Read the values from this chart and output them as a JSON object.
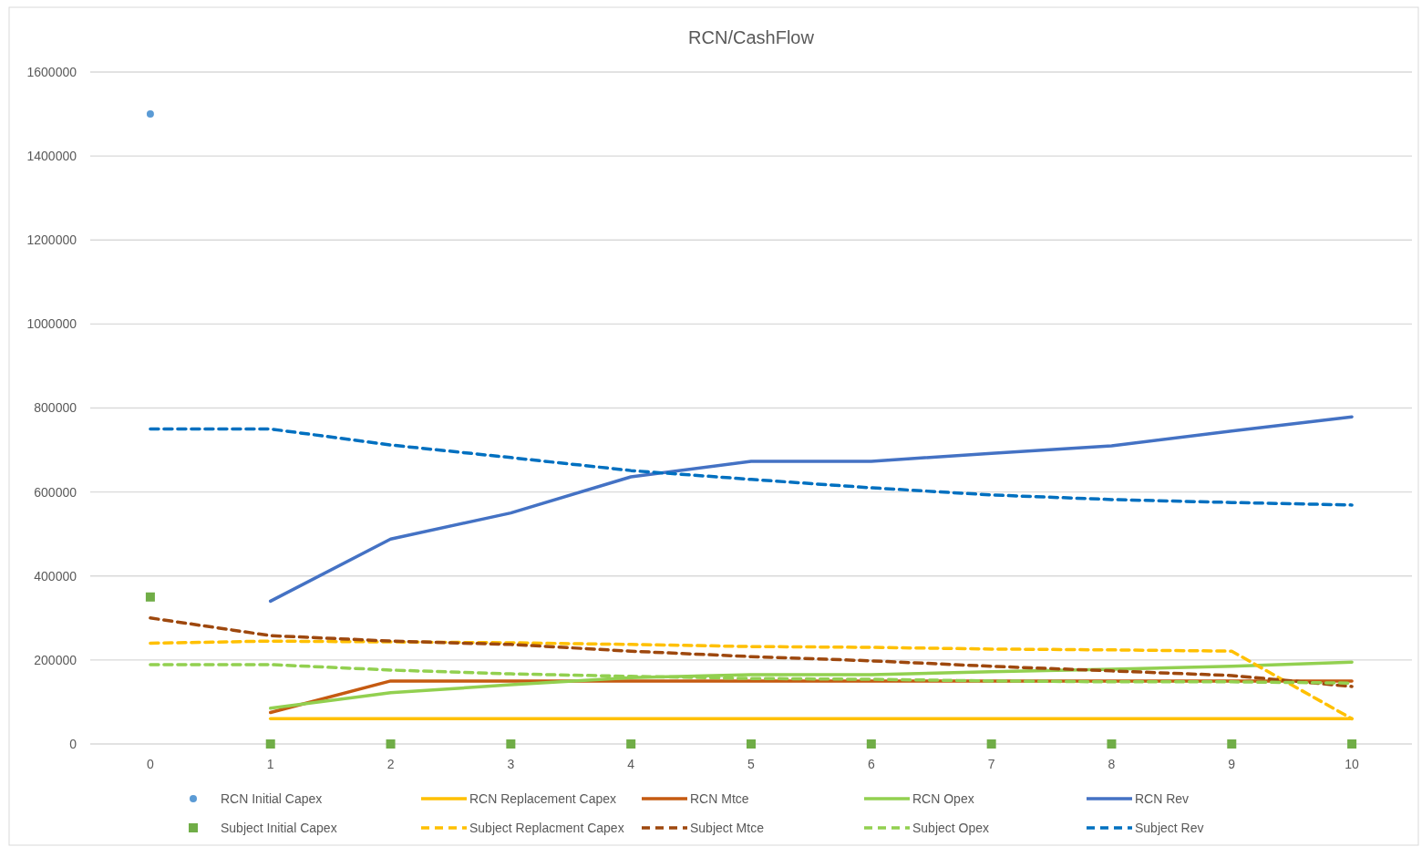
{
  "chart_data": {
    "type": "line",
    "title": "RCN/CashFlow",
    "categories": [
      "0",
      "1",
      "2",
      "3",
      "4",
      "5",
      "6",
      "7",
      "8",
      "9",
      "10"
    ],
    "series": [
      {
        "name": "RCN Initial Capex",
        "type": "scatter",
        "marker": "circle",
        "color": "#5b9bd5",
        "values": [
          1500000,
          null,
          null,
          null,
          null,
          null,
          null,
          null,
          null,
          null,
          null
        ]
      },
      {
        "name": "RCN Replacement Capex",
        "color": "#ffc000",
        "line_style": "solid",
        "values": [
          null,
          60000,
          60000,
          60000,
          60000,
          60000,
          60000,
          60000,
          60000,
          60000,
          60000
        ]
      },
      {
        "name": "RCN Mtce",
        "color": "#c55a11",
        "line_style": "solid",
        "values": [
          null,
          75000,
          150000,
          150000,
          150000,
          150000,
          150000,
          150000,
          150000,
          150000,
          150000
        ]
      },
      {
        "name": "RCN Opex",
        "color": "#92d050",
        "line_style": "solid",
        "values": [
          null,
          85000,
          122000,
          141000,
          158000,
          165000,
          165000,
          172000,
          178000,
          185000,
          195000
        ]
      },
      {
        "name": "RCN Rev",
        "color": "#4472c4",
        "line_style": "solid",
        "values": [
          null,
          340000,
          488000,
          550000,
          636000,
          673000,
          673000,
          692000,
          710000,
          745000,
          779000
        ]
      },
      {
        "name": "Subject Initial Capex",
        "type": "scatter",
        "marker": "square",
        "color": "#70ad47",
        "values": [
          350000,
          0,
          0,
          0,
          0,
          0,
          0,
          0,
          0,
          0,
          0
        ]
      },
      {
        "name": "Subject Replacment Capex",
        "color": "#ffc000",
        "line_style": "dashed",
        "values": [
          240000,
          245000,
          243000,
          241000,
          237000,
          232000,
          230000,
          226000,
          224000,
          221000,
          60000
        ]
      },
      {
        "name": "Subject Mtce",
        "color": "#9e480e",
        "line_style": "dashed",
        "values": [
          300000,
          258000,
          245000,
          237000,
          221000,
          208000,
          198000,
          185000,
          174000,
          163000,
          137000
        ]
      },
      {
        "name": "Subject Opex",
        "color": "#92d050",
        "line_style": "dashed",
        "values": [
          189000,
          189000,
          176000,
          167000,
          161000,
          156000,
          154000,
          150000,
          148000,
          148000,
          145000
        ]
      },
      {
        "name": "Subject Rev",
        "color": "#0070c0",
        "line_style": "dashed",
        "values": [
          750000,
          750000,
          712000,
          682000,
          651000,
          630000,
          610000,
          593000,
          582000,
          575000,
          569000
        ]
      }
    ],
    "ylim": [
      0,
      1600000
    ],
    "yticks": [
      0,
      200000,
      400000,
      600000,
      800000,
      1000000,
      1200000,
      1400000,
      1600000
    ],
    "grid": "y",
    "legend": "bottom",
    "marker": "none"
  }
}
